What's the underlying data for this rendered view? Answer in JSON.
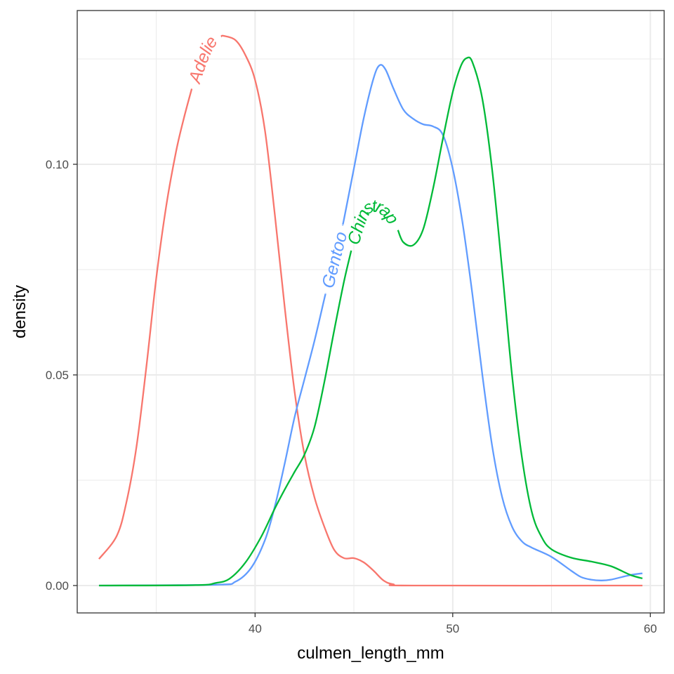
{
  "chart_data": {
    "type": "line",
    "title": "",
    "xlabel": "culmen_length_mm",
    "ylabel": "density",
    "xlim": [
      31.0,
      60.7
    ],
    "ylim": [
      -0.0065,
      0.1365
    ],
    "x_ticks": [
      40,
      50,
      60
    ],
    "x_tick_labels": [
      "40",
      "50",
      "60"
    ],
    "y_ticks": [
      0.0,
      0.05,
      0.1
    ],
    "y_tick_labels": [
      "0.00",
      "0.05",
      "0.10"
    ],
    "grid": true,
    "legend": "none (direct labels on curves)",
    "series": [
      {
        "name": "Adelie",
        "color": "#F8766D",
        "points": [
          [
            32.1,
            0.0063
          ],
          [
            33,
            0.0118
          ],
          [
            33.5,
            0.02
          ],
          [
            34,
            0.033
          ],
          [
            34.5,
            0.052
          ],
          [
            35,
            0.073
          ],
          [
            35.5,
            0.09
          ],
          [
            36,
            0.103
          ],
          [
            36.4,
            0.111
          ],
          [
            36.8,
            0.118
          ],
          [
            37.3,
            0.125
          ],
          [
            37.8,
            0.1295
          ],
          [
            38.4,
            0.1305
          ],
          [
            39,
            0.1295
          ],
          [
            39.5,
            0.126
          ],
          [
            40,
            0.12
          ],
          [
            40.5,
            0.108
          ],
          [
            41,
            0.088
          ],
          [
            41.5,
            0.066
          ],
          [
            42,
            0.046
          ],
          [
            42.5,
            0.031
          ],
          [
            43,
            0.021
          ],
          [
            43.5,
            0.014
          ],
          [
            44,
            0.0085
          ],
          [
            44.5,
            0.0065
          ],
          [
            45,
            0.0065
          ],
          [
            45.5,
            0.0055
          ],
          [
            46,
            0.0035
          ],
          [
            46.5,
            0.0012
          ],
          [
            47,
            0.0003
          ],
          [
            48,
            0.0
          ],
          [
            59.6,
            0.0
          ]
        ]
      },
      {
        "name": "Gentoo",
        "color": "#619CFF",
        "points": [
          [
            32.1,
            0.0
          ],
          [
            38,
            0.0002
          ],
          [
            39,
            0.0009
          ],
          [
            39.8,
            0.0042
          ],
          [
            40.5,
            0.0108
          ],
          [
            41,
            0.0188
          ],
          [
            41.5,
            0.029
          ],
          [
            42,
            0.04
          ],
          [
            42.5,
            0.049
          ],
          [
            43,
            0.058
          ],
          [
            43.5,
            0.068
          ],
          [
            44,
            0.0775
          ],
          [
            44.5,
            0.087
          ],
          [
            45,
            0.099
          ],
          [
            45.5,
            0.111
          ],
          [
            46,
            0.1205
          ],
          [
            46.3,
            0.1235
          ],
          [
            46.6,
            0.1225
          ],
          [
            47,
            0.118
          ],
          [
            47.5,
            0.113
          ],
          [
            48,
            0.1108
          ],
          [
            48.5,
            0.1095
          ],
          [
            49,
            0.109
          ],
          [
            49.5,
            0.107
          ],
          [
            50,
            0.099
          ],
          [
            50.5,
            0.086
          ],
          [
            51,
            0.069
          ],
          [
            51.5,
            0.05
          ],
          [
            52,
            0.033
          ],
          [
            52.5,
            0.021
          ],
          [
            53,
            0.014
          ],
          [
            53.5,
            0.0105
          ],
          [
            54,
            0.009
          ],
          [
            55,
            0.0068
          ],
          [
            56,
            0.0035
          ],
          [
            56.5,
            0.002
          ],
          [
            57,
            0.0014
          ],
          [
            57.5,
            0.0012
          ],
          [
            58,
            0.0014
          ],
          [
            59,
            0.0025
          ],
          [
            59.6,
            0.0029
          ]
        ]
      },
      {
        "name": "Chinstrap",
        "color": "#00BA38",
        "points": [
          [
            32.1,
            0.0
          ],
          [
            37,
            0.0001
          ],
          [
            38,
            0.0006
          ],
          [
            38.7,
            0.0016
          ],
          [
            39.5,
            0.0054
          ],
          [
            40.3,
            0.0115
          ],
          [
            41,
            0.0183
          ],
          [
            41.5,
            0.0228
          ],
          [
            42,
            0.027
          ],
          [
            42.5,
            0.0311
          ],
          [
            43,
            0.0375
          ],
          [
            43.5,
            0.0482
          ],
          [
            44,
            0.0605
          ],
          [
            44.5,
            0.0722
          ],
          [
            45,
            0.0822
          ],
          [
            45.5,
            0.0888
          ],
          [
            46,
            0.0902
          ],
          [
            46.5,
            0.0895
          ],
          [
            47,
            0.0868
          ],
          [
            47.5,
            0.0815
          ],
          [
            48,
            0.0808
          ],
          [
            48.5,
            0.0845
          ],
          [
            49,
            0.0941
          ],
          [
            49.5,
            0.106
          ],
          [
            50,
            0.1171
          ],
          [
            50.4,
            0.1232
          ],
          [
            50.7,
            0.1252
          ],
          [
            51,
            0.1242
          ],
          [
            51.5,
            0.1155
          ],
          [
            52,
            0.0985
          ],
          [
            52.5,
            0.075
          ],
          [
            53,
            0.05
          ],
          [
            53.5,
            0.0305
          ],
          [
            54,
            0.0175
          ],
          [
            54.5,
            0.0115
          ],
          [
            55,
            0.0086
          ],
          [
            56,
            0.0066
          ],
          [
            57,
            0.0057
          ],
          [
            58,
            0.0046
          ],
          [
            59,
            0.0025
          ],
          [
            59.6,
            0.0017
          ]
        ]
      }
    ]
  }
}
